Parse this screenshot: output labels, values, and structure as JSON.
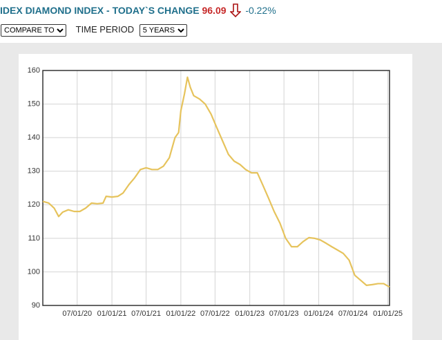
{
  "header": {
    "title": "IDEX DIAMOND INDEX - TODAY`S CHANGE",
    "price": "96.09",
    "change": "-0.22%"
  },
  "controls": {
    "compare": "COMPARE TO",
    "period_label": "TIME PERIOD",
    "period": "5 YEARS"
  },
  "chart_data": {
    "type": "line",
    "color": "#e6c35c",
    "grid": true,
    "ylim": [
      90,
      160
    ],
    "yticks": [
      90,
      100,
      110,
      120,
      130,
      140,
      150,
      160
    ],
    "xlim": [
      "01/01/20",
      "01/10/25"
    ],
    "xticks": [
      "07/01/20",
      "01/01/21",
      "07/01/21",
      "01/01/22",
      "07/01/22",
      "01/01/23",
      "07/01/23",
      "01/01/24",
      "07/01/24",
      "01/01/25"
    ],
    "x": [
      "01/01/20",
      "02/01/20",
      "03/01/20",
      "03/25/20",
      "04/15/20",
      "05/15/20",
      "06/15/20",
      "07/15/20",
      "08/15/20",
      "09/15/20",
      "10/15/20",
      "11/15/20",
      "12/01/20",
      "01/01/21",
      "02/01/21",
      "03/01/21",
      "04/01/21",
      "05/01/21",
      "06/01/21",
      "07/01/21",
      "08/01/21",
      "09/01/21",
      "10/01/21",
      "11/01/21",
      "12/01/21",
      "12/20/21",
      "01/01/22",
      "01/20/22",
      "02/05/22",
      "02/20/22",
      "03/10/22",
      "04/10/22",
      "05/10/22",
      "06/10/22",
      "07/10/22",
      "08/10/22",
      "09/10/22",
      "10/10/22",
      "11/10/22",
      "12/10/22",
      "01/10/23",
      "02/10/23",
      "03/10/23",
      "04/10/23",
      "05/10/23",
      "06/10/23",
      "07/10/23",
      "08/10/23",
      "09/10/23",
      "10/10/23",
      "11/10/23",
      "12/10/23",
      "01/10/24",
      "02/10/24",
      "03/10/24",
      "04/10/24",
      "05/10/24",
      "06/10/24",
      "07/10/24",
      "08/10/24",
      "09/10/24",
      "10/10/24",
      "11/10/24",
      "12/10/24",
      "01/10/25"
    ],
    "values": [
      121,
      120.5,
      119,
      116.5,
      117.8,
      118.5,
      118,
      118,
      119,
      120.5,
      120.3,
      120.5,
      122.5,
      122.3,
      122.5,
      123.5,
      126,
      128,
      130.5,
      131,
      130.5,
      130.5,
      131.5,
      134,
      140,
      141.5,
      148,
      153,
      158,
      155,
      152.5,
      151.5,
      150,
      147,
      143,
      139,
      135,
      133,
      132,
      130.5,
      129.5,
      129.5,
      126,
      122,
      118,
      114.5,
      110,
      107.5,
      107.5,
      109,
      110.2,
      110,
      109.5,
      108.5,
      107.5,
      106.5,
      105.5,
      103.5,
      99,
      97.5,
      96,
      96.2,
      96.5,
      96.5,
      95.5
    ]
  }
}
